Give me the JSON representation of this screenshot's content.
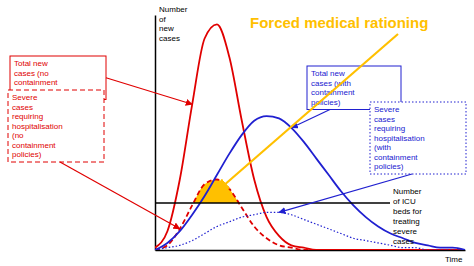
{
  "chart_data": {
    "type": "line",
    "title": "Forced medical rationing",
    "color": "#ffc000",
    "y_label": "Number of new cases",
    "x_label": "Time",
    "x": [
      0,
      4,
      8,
      12,
      16,
      20,
      24,
      28,
      32,
      36,
      40,
      44,
      48,
      52,
      56,
      60,
      64,
      68,
      72,
      76,
      80,
      84,
      88,
      92,
      96,
      100
    ],
    "series": [
      {
        "name": "Total new cases (no containment policies)",
        "color": "#e00000",
        "line_style": "solid",
        "values": [
          1,
          8,
          30,
          62,
          90,
          96,
          82,
          55,
          30,
          14,
          6,
          2,
          1,
          0,
          0,
          0,
          0,
          0,
          0,
          0,
          0,
          0,
          0,
          0,
          0,
          0
        ]
      },
      {
        "name": "Severe cases requiring hospitalisation (no containment policies)",
        "color": "#e00000",
        "line_style": "dashed",
        "values": [
          0,
          2,
          9,
          19,
          28,
          30,
          26,
          18,
          10,
          5,
          2,
          1,
          0,
          0,
          0,
          0,
          0,
          0,
          0,
          0,
          0,
          0,
          0,
          0,
          0,
          0
        ]
      },
      {
        "name": "Total new cases (with containment policies)",
        "color": "#2020d0",
        "line_style": "solid",
        "values": [
          0,
          3,
          8,
          15,
          23,
          32,
          41,
          49,
          55,
          57,
          56,
          52,
          46,
          39,
          32,
          25,
          19,
          14,
          10,
          7,
          5,
          3,
          2,
          1,
          1,
          0
        ]
      },
      {
        "name": "Severe cases requiring hospitalisation (with containment policies)",
        "color": "#2020d0",
        "line_style": "dotted",
        "values": [
          0,
          1,
          2,
          4,
          7,
          10,
          12,
          14,
          15,
          16,
          16,
          15,
          13,
          11,
          9,
          7,
          5,
          4,
          3,
          2,
          1,
          1,
          0,
          0,
          0,
          0
        ]
      }
    ],
    "reference_line": {
      "value": 20,
      "label": "Number of ICU beds for treating severe cases"
    },
    "xlim": [
      0,
      100
    ],
    "ylim": [
      0,
      100
    ],
    "tick_labels": false,
    "grid": false
  }
}
